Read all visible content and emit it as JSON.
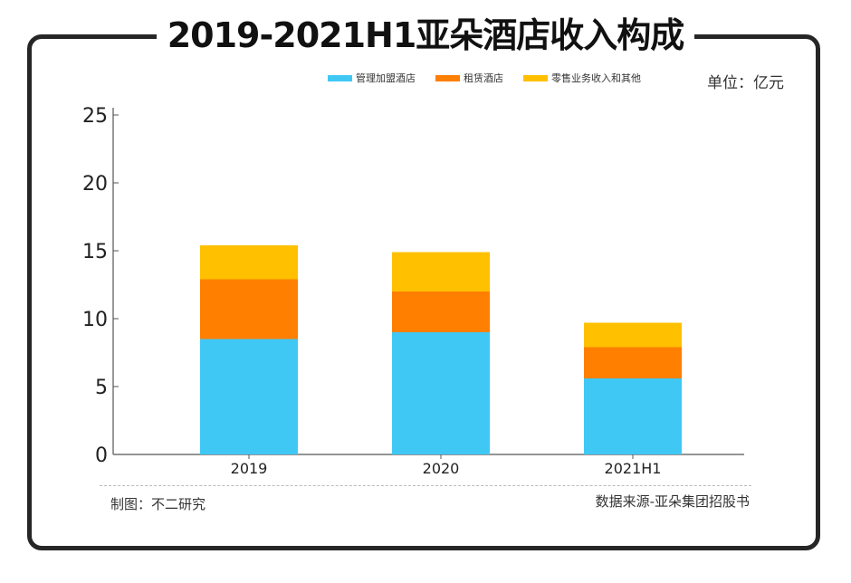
{
  "header": {
    "title": "2019-2021H1亚朵酒店收入构成"
  },
  "unit_label": "单位：亿元",
  "footer": {
    "maker": "制图：不二研究",
    "source": "数据来源-亚朵集团招股书"
  },
  "chart_data": {
    "type": "bar",
    "stacked": true,
    "title": "2019-2021H1亚朵酒店收入构成",
    "categories": [
      "2019",
      "2020",
      "2021H1"
    ],
    "series": [
      {
        "name": "管理加盟酒店",
        "color": "#40c8f5",
        "values": [
          8.5,
          9.0,
          5.6
        ]
      },
      {
        "name": "租赁酒店",
        "color": "#ff7f00",
        "values": [
          4.4,
          3.0,
          2.3
        ]
      },
      {
        "name": "零售业务收入和其他",
        "color": "#ffc000",
        "values": [
          2.5,
          2.9,
          1.8
        ]
      }
    ],
    "ylim": [
      0,
      25
    ],
    "yticks": [
      "0",
      "5",
      "10",
      "15",
      "20",
      "25"
    ],
    "xlabel": "",
    "ylabel": "",
    "legend_position": "top-center",
    "grid": false
  }
}
